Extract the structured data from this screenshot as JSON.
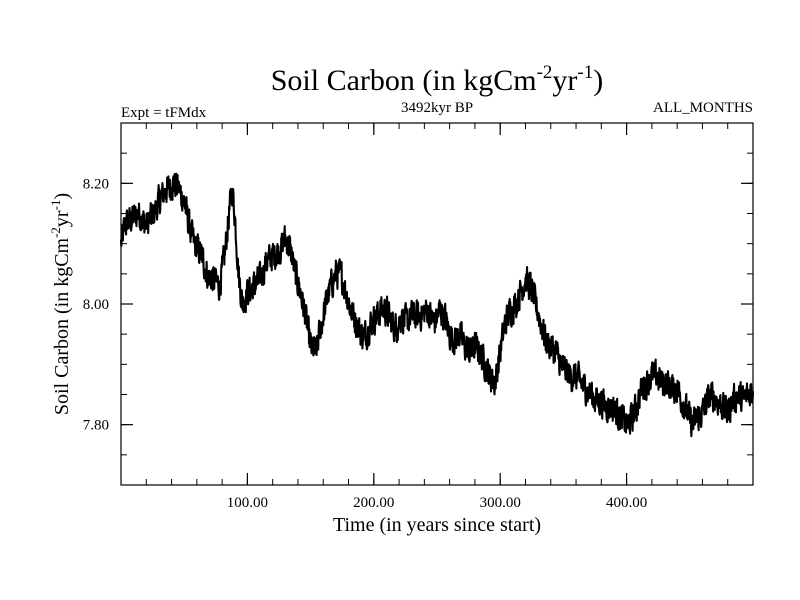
{
  "chart_data": {
    "type": "line",
    "title_main": "Soil Carbon (in kgCm",
    "title_sup1": "-2",
    "title_mid": "yr",
    "title_sup2": "-1",
    "title_close": ")",
    "subtitle_left": "Expt = tFMdx",
    "subtitle_center": "3492kyr BP",
    "subtitle_right": "ALL_MONTHS",
    "xlabel": "Time (in years since start)",
    "ylabel_main": "Soil Carbon (in kgCm",
    "ylabel_sup1": "-2",
    "ylabel_mid": "yr",
    "ylabel_sup2": "-1",
    "ylabel_close": ")",
    "xlim": [
      0,
      500
    ],
    "ylim": [
      7.7,
      8.3
    ],
    "x_ticks": [
      100,
      200,
      300,
      400
    ],
    "x_tick_labels": [
      "100.00",
      "200.00",
      "300.00",
      "400.00"
    ],
    "x_minor_step": 20,
    "y_ticks": [
      7.8,
      8.0,
      8.2
    ],
    "y_tick_labels": [
      "7.80",
      "8.00",
      "8.20"
    ],
    "y_minor_step": 0.05,
    "line_color": "#000000",
    "noise_amplitude": 0.022,
    "series": [
      {
        "name": "Soil Carbon",
        "x": [
          0,
          3,
          8,
          14,
          20,
          26,
          30,
          36,
          42,
          46,
          50,
          55,
          58,
          64,
          68,
          74,
          78,
          82,
          86,
          88,
          90,
          93,
          96,
          100,
          105,
          110,
          115,
          120,
          126,
          130,
          134,
          138,
          142,
          146,
          150,
          154,
          158,
          162,
          166,
          170,
          174,
          178,
          182,
          186,
          190,
          194,
          198,
          202,
          206,
          210,
          214,
          218,
          222,
          226,
          230,
          236,
          242,
          248,
          252,
          256,
          260,
          264,
          268,
          272,
          276,
          280,
          284,
          288,
          292,
          296,
          300,
          304,
          308,
          312,
          316,
          320,
          324,
          328,
          332,
          336,
          340,
          344,
          348,
          352,
          356,
          360,
          364,
          368,
          372,
          376,
          380,
          384,
          388,
          392,
          396,
          400,
          404,
          408,
          412,
          416,
          420,
          424,
          428,
          432,
          436,
          440,
          444,
          448,
          452,
          456,
          460,
          464,
          468,
          472,
          476,
          480,
          484,
          488,
          492,
          496,
          500
        ],
        "y": [
          8.1,
          8.13,
          8.14,
          8.15,
          8.13,
          8.15,
          8.17,
          8.19,
          8.2,
          8.19,
          8.17,
          8.12,
          8.1,
          8.08,
          8.05,
          8.04,
          8.03,
          8.08,
          8.16,
          8.19,
          8.15,
          8.05,
          8.0,
          8.02,
          8.03,
          8.04,
          8.07,
          8.08,
          8.09,
          8.11,
          8.09,
          8.05,
          8.02,
          7.98,
          7.93,
          7.92,
          7.96,
          8.0,
          8.03,
          8.05,
          8.05,
          8.02,
          7.99,
          7.97,
          7.95,
          7.95,
          7.97,
          7.98,
          7.99,
          7.99,
          7.97,
          7.96,
          7.98,
          7.97,
          7.98,
          7.98,
          7.99,
          7.97,
          7.99,
          7.98,
          7.95,
          7.94,
          7.95,
          7.93,
          7.92,
          7.93,
          7.92,
          7.9,
          7.88,
          7.87,
          7.92,
          7.97,
          7.99,
          8.0,
          8.02,
          8.04,
          8.03,
          8.0,
          7.97,
          7.94,
          7.93,
          7.92,
          7.9,
          7.89,
          7.88,
          7.88,
          7.87,
          7.86,
          7.85,
          7.84,
          7.84,
          7.83,
          7.83,
          7.82,
          7.81,
          7.8,
          7.81,
          7.83,
          7.86,
          7.87,
          7.88,
          7.88,
          7.87,
          7.87,
          7.86,
          7.86,
          7.84,
          7.82,
          7.8,
          7.81,
          7.82,
          7.84,
          7.85,
          7.84,
          7.83,
          7.82,
          7.84,
          7.85,
          7.84,
          7.85,
          7.86
        ]
      }
    ]
  }
}
